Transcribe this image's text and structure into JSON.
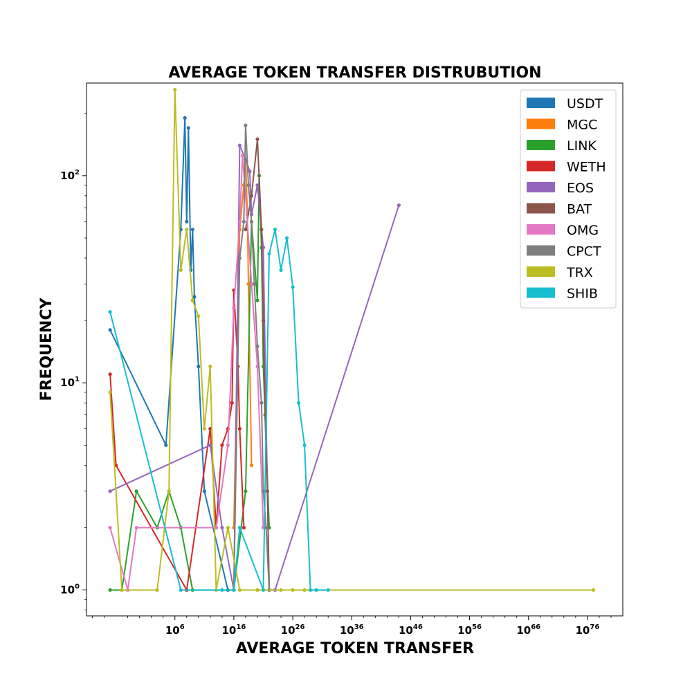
{
  "chart_data": {
    "type": "line",
    "title": "AVERAGE TOKEN TRANSFER DISTRUBUTION",
    "xlabel": "AVERAGE TOKEN TRANSFER",
    "ylabel": "FREQUENCY",
    "x_scale": "log",
    "y_scale": "log",
    "xlim": [
      1e-09,
      1e+82
    ],
    "ylim": [
      0.75,
      280
    ],
    "x_ticks": [
      {
        "base": "10",
        "exp": "6",
        "value": 1000000.0
      },
      {
        "base": "10",
        "exp": "16",
        "value": 1e+16
      },
      {
        "base": "10",
        "exp": "26",
        "value": 1e+26
      },
      {
        "base": "10",
        "exp": "36",
        "value": 1e+36
      },
      {
        "base": "10",
        "exp": "46",
        "value": 1e+46
      },
      {
        "base": "10",
        "exp": "56",
        "value": 1e+56
      },
      {
        "base": "10",
        "exp": "66",
        "value": 1e+66
      },
      {
        "base": "10",
        "exp": "76",
        "value": 1e+76
      }
    ],
    "y_ticks": [
      {
        "base": "10",
        "exp": "0",
        "value": 1
      },
      {
        "base": "10",
        "exp": "1",
        "value": 10
      },
      {
        "base": "10",
        "exp": "2",
        "value": 100
      }
    ],
    "grid": false,
    "legend_position": "top-right",
    "series": [
      {
        "name": "USDT",
        "color": "#1f77b4",
        "x": [
          1e-05,
          30000.0,
          10000000.0,
          50000000.0,
          100000000.0,
          200000000.0,
          500000000.0,
          1000000000.0,
          2000000000.0,
          10000000000.0,
          100000000000.0,
          1000000000000000.0
        ],
        "y": [
          18,
          5,
          55,
          190,
          60,
          170,
          35,
          55,
          26,
          12,
          3,
          1
        ]
      },
      {
        "name": "MGC",
        "color": "#ff7f0e",
        "x": [
          1e+16,
          1e+17,
          5e+17,
          1e+18,
          2e+18,
          3e+18,
          1e+19
        ],
        "y": [
          2,
          55,
          90,
          120,
          65,
          30,
          4
        ]
      },
      {
        "name": "LINK",
        "color": "#2ca02c",
        "x": [
          1e-05,
          0.001,
          0.3,
          1000.0,
          100000.0,
          10000000.0,
          1000000000.0,
          1e+16,
          1e+18,
          1e+19,
          1e+20,
          2e+20,
          5e+20,
          1e+21,
          1e+22
        ],
        "y": [
          1,
          1,
          3,
          2,
          3,
          2,
          1,
          1,
          3,
          60,
          25,
          100,
          45,
          12,
          2
        ]
      },
      {
        "name": "WETH",
        "color": "#d62728",
        "x": [
          1e-05,
          0.0001,
          100000000.0,
          1000000000000.0,
          10000000000000.0,
          100000000000000.0,
          1000000000000000.0,
          5000000000000000.0,
          1e+16,
          5e+16,
          1e+17,
          5e+17
        ],
        "y": [
          11,
          4,
          1,
          6,
          2,
          5,
          6,
          8,
          28,
          12,
          6,
          2
        ]
      },
      {
        "name": "EOS",
        "color": "#9467bd",
        "x": [
          1e-05,
          1000000000000.0,
          100000000000000.0,
          1e+16,
          1e+17,
          1e+18,
          5e+18,
          1e+19,
          1e+20,
          1e+21,
          5e+21,
          1e+22,
          1e+23,
          1e+44
        ],
        "y": [
          3,
          5,
          2,
          1,
          140,
          120,
          105,
          65,
          90,
          45,
          3,
          1,
          1,
          72
        ]
      },
      {
        "name": "BAT",
        "color": "#8c564b",
        "x": [
          1e+18,
          1e+19,
          1e+20,
          5e+20,
          1e+21,
          2e+21,
          5e+21,
          1e+22
        ],
        "y": [
          55,
          80,
          150,
          55,
          20,
          7,
          3,
          1
        ]
      },
      {
        "name": "OMG",
        "color": "#e377c2",
        "x": [
          1e-05,
          0.01,
          0.3,
          10000000000000.0,
          1000000000000000.0,
          1e+16,
          1e+17,
          3e+17,
          1e+18,
          1e+19,
          1e+20,
          1e+21
        ],
        "y": [
          2,
          1,
          2,
          2,
          5,
          23,
          60,
          125,
          80,
          30,
          12,
          2
        ]
      },
      {
        "name": "CPCT",
        "color": "#7f7f7f",
        "x": [
          1e+16,
          1e+17,
          5e+17,
          1e+18,
          3e+18,
          1e+19,
          3e+19,
          1e+20,
          5e+20,
          1e+21,
          3e+21,
          1e+22
        ],
        "y": [
          1,
          40,
          60,
          175,
          90,
          60,
          30,
          15,
          8,
          3,
          2,
          1
        ]
      },
      {
        "name": "TRX",
        "color": "#bcbd22",
        "x": [
          1e-05,
          0.001,
          1000.0,
          100000.0,
          1000000.0,
          10000000.0,
          100000000.0,
          1000000000.0,
          10000000000.0,
          100000000000.0,
          1000000000000.0,
          10000000000000.0,
          1000000000000000.0,
          1e+17,
          1e+20,
          1e+24,
          1e+26,
          1e+28,
          1e+77
        ],
        "y": [
          9,
          1,
          1,
          3,
          260,
          35,
          55,
          25,
          21,
          6,
          12,
          1,
          2,
          1,
          1,
          1,
          1,
          1,
          1
        ]
      },
      {
        "name": "SHIB",
        "color": "#17becf",
        "x": [
          1e-05,
          10000000.0,
          100000000000000.0,
          1e+16,
          1e+17,
          1e+21,
          1e+22,
          1e+23,
          1e+24,
          1e+25,
          1e+26,
          1e+27,
          1e+28,
          1e+29,
          1e+30,
          1e+32
        ],
        "y": [
          22,
          1,
          1,
          1,
          2,
          1,
          42,
          55,
          35,
          50,
          29,
          8,
          5,
          1,
          1,
          1
        ]
      }
    ]
  }
}
